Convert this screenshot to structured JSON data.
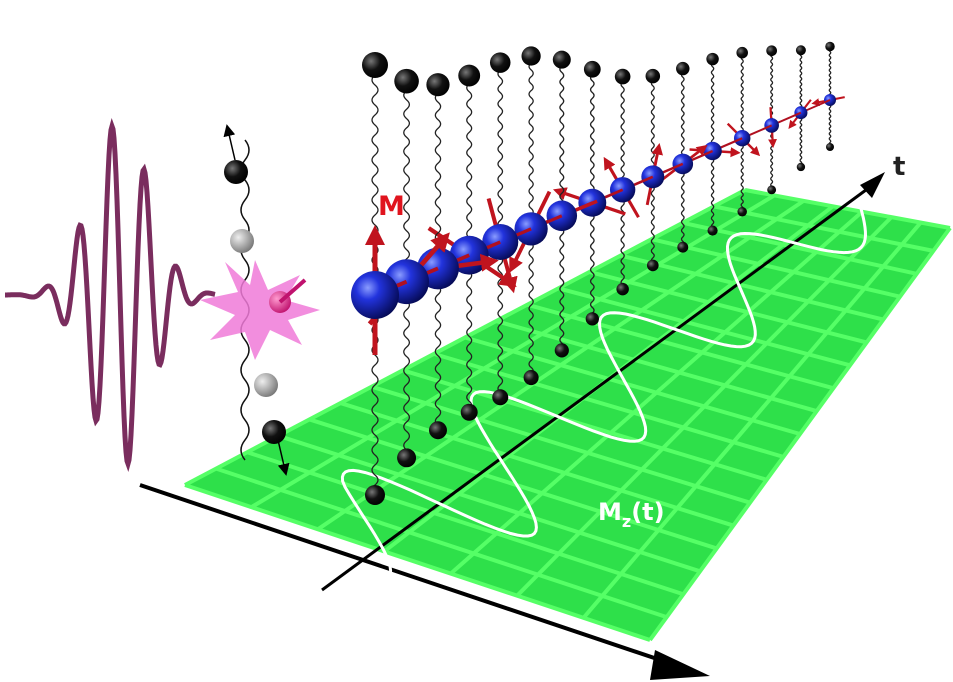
{
  "labels": {
    "magnetization": "M",
    "time_axis": "t",
    "mz_symbol": "M",
    "mz_subscript": "z",
    "mz_argument": "(t)"
  }
}
